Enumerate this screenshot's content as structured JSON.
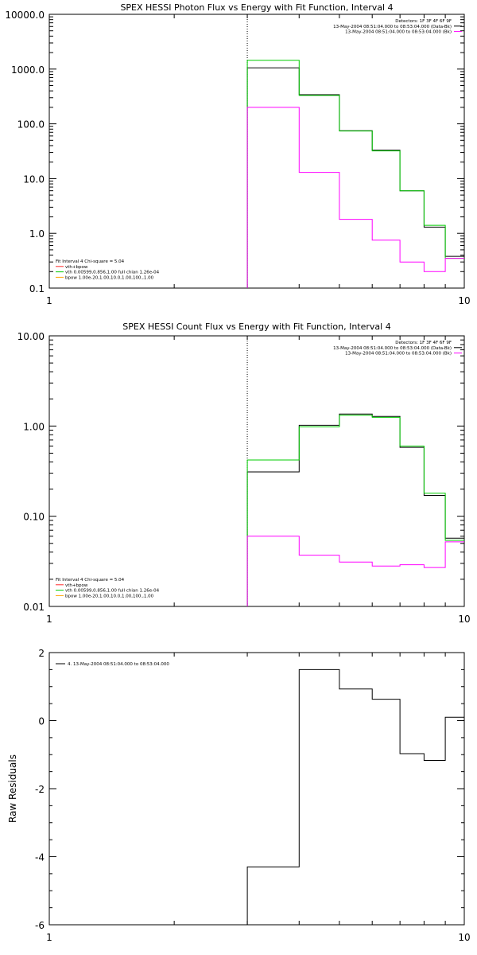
{
  "colors": {
    "data": "#000000",
    "total": "#000000",
    "thermal": "#00cc00",
    "powerlaw": "#ff00ff",
    "vth_bpow": "#ff2a2a",
    "bpow": "#ffa500"
  },
  "chart_data": [
    {
      "type": "line",
      "title": "SPEX HESSI Photon Flux vs Energy with Fit Function, Interval 4",
      "xlabel": "",
      "ylabel": "",
      "xscale": "log",
      "yscale": "log",
      "xlim": [
        1,
        10
      ],
      "ylim": [
        0.1,
        10000.0
      ],
      "x_tick_labels": [
        "1",
        "10"
      ],
      "y_tick_labels": [
        "10000.0",
        "1000.0",
        "100.0",
        "10.0",
        "1.0",
        "0.1"
      ],
      "dotted_line_x": 3.0,
      "bin_edges": [
        3.0,
        4.0,
        5.0,
        6.0,
        7.0,
        8.0,
        9.0,
        10.0
      ],
      "series": [
        {
          "color_key": "data",
          "values": [
            1050,
            340,
            75,
            33,
            6,
            1.3,
            0.38
          ]
        },
        {
          "color_key": "thermal",
          "values": [
            1450,
            330,
            74,
            32,
            6,
            1.4,
            0.35
          ]
        },
        {
          "color_key": "powerlaw",
          "values": [
            200,
            13,
            1.8,
            0.75,
            0.3,
            0.2,
            0.35
          ]
        }
      ],
      "legend_right": {
        "lines": [
          {
            "text": "Detectors: 1F 3F 4F 6F 9F",
            "swatch": null
          },
          {
            "text": "13-May-2004 08:51:04.000 to 08:53:04.000 (Data-Bk)",
            "swatch": "data"
          },
          {
            "text": "13-May-2004 08:51:04.000 to 08:53:04.000 (Bk)",
            "swatch": "powerlaw"
          }
        ]
      },
      "legend_left": {
        "lines": [
          {
            "text": "Fit Interval 4   Chi-square = 5.04",
            "swatch": null
          },
          {
            "text": "vth+bpow",
            "swatch": "vth_bpow"
          },
          {
            "text": "vth 0.00599,0.856,1.00  full chian 1.26e-04",
            "swatch": "thermal"
          },
          {
            "text": "bpow 1.00e-20,1.00,10.0,1.00,100.,1.00",
            "swatch": "bpow"
          }
        ]
      }
    },
    {
      "type": "line",
      "title": "SPEX HESSI Count Flux vs Energy with Fit Function, Interval 4",
      "xlabel": "",
      "ylabel": "",
      "xscale": "log",
      "yscale": "log",
      "xlim": [
        1,
        10
      ],
      "ylim": [
        0.01,
        10.0
      ],
      "x_tick_labels": [
        "1",
        "10"
      ],
      "y_tick_labels": [
        "10.00",
        "1.00",
        "0.10",
        "0.01"
      ],
      "dotted_line_x": 3.0,
      "bin_edges": [
        3.0,
        4.0,
        5.0,
        6.0,
        7.0,
        8.0,
        9.0,
        10.0
      ],
      "series": [
        {
          "color_key": "data",
          "values": [
            0.31,
            1.02,
            1.36,
            1.28,
            0.58,
            0.17,
            0.057
          ]
        },
        {
          "color_key": "thermal",
          "values": [
            0.42,
            0.98,
            1.32,
            1.25,
            0.6,
            0.18,
            0.054
          ]
        },
        {
          "color_key": "powerlaw",
          "values": [
            0.06,
            0.037,
            0.031,
            0.028,
            0.029,
            0.027,
            0.052
          ]
        }
      ],
      "legend_right": {
        "lines": [
          {
            "text": "Detectors: 1F 3F 4F 6F 9F",
            "swatch": null
          },
          {
            "text": "13-May-2004 08:51:04.000 to 08:53:04.000 (Data-Bk)",
            "swatch": "data"
          },
          {
            "text": "13-May-2004 08:51:04.000 to 08:53:04.000 (Bk)",
            "swatch": "powerlaw"
          }
        ]
      },
      "legend_left": {
        "lines": [
          {
            "text": "Fit Interval 4   Chi-square = 5.04",
            "swatch": null
          },
          {
            "text": "vth+bpow",
            "swatch": "vth_bpow"
          },
          {
            "text": "vth 0.00599,0.856,1.00  full chian 1.26e-04",
            "swatch": "thermal"
          },
          {
            "text": "bpow 1.00e-20,1.00,10.0,1.00,100.,1.00",
            "swatch": "bpow"
          }
        ]
      }
    },
    {
      "type": "line",
      "title": "",
      "xlabel": "",
      "ylabel": "Raw Residuals",
      "xscale": "log",
      "yscale": "linear",
      "xlim": [
        1,
        10
      ],
      "ylim": [
        -6,
        2
      ],
      "x_tick_labels": [
        "1",
        "10"
      ],
      "y_tick_labels": [
        "2",
        "0",
        "-2",
        "-4",
        "-6"
      ],
      "bin_edges": [
        3.0,
        4.0,
        5.0,
        6.0,
        7.0,
        8.0,
        9.0,
        10.0
      ],
      "series": [
        {
          "color_key": "data",
          "values": [
            -4.3,
            1.5,
            0.93,
            0.63,
            -0.97,
            -1.17,
            0.1
          ]
        }
      ],
      "legend_right": {
        "lines": []
      },
      "legend_left": {
        "lines": []
      },
      "legend_top": {
        "lines": [
          {
            "text": "4. 13-May-2004 08:51:04.000 to 08:53:04.000",
            "swatch": "data"
          }
        ]
      }
    }
  ]
}
